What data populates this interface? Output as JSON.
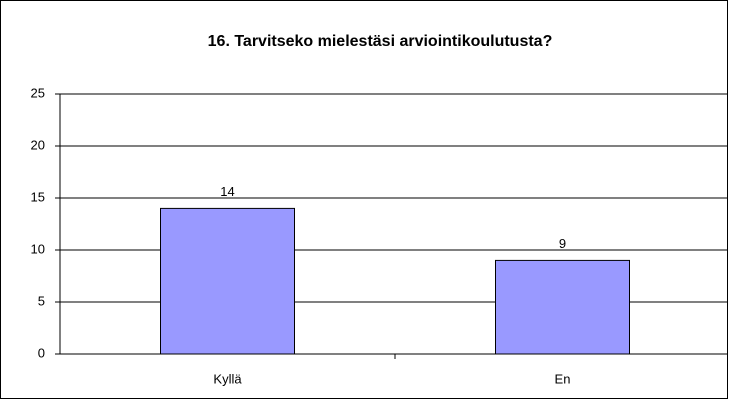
{
  "chart_data": {
    "type": "bar",
    "title": "16. Tarvitseko mielestäsi arviointikoulutusta?",
    "categories": [
      "Kyllä",
      "En"
    ],
    "values": [
      14,
      9
    ],
    "color": "#9999ff",
    "ylim": [
      0,
      25
    ],
    "yticks": [
      0,
      5,
      10,
      15,
      20,
      25
    ],
    "grid": true
  }
}
